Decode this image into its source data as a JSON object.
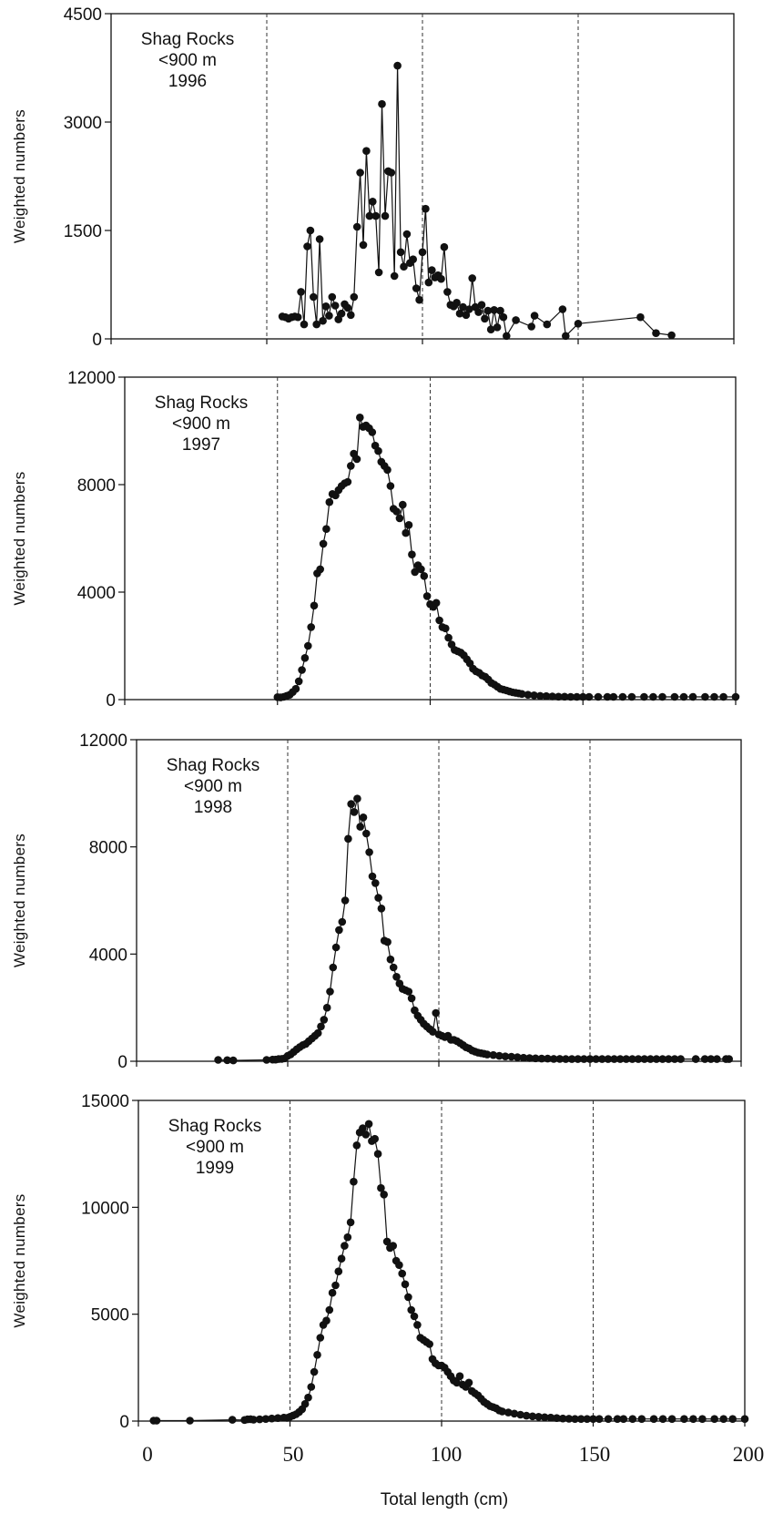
{
  "figure": {
    "xlabel": "Total length (cm)",
    "x_ticks": [
      "0",
      "50",
      "100",
      "150",
      "200"
    ]
  },
  "chart_data": [
    {
      "type": "line",
      "title_lines": [
        "Shag Rocks",
        "<900 m",
        "1996"
      ],
      "xlabel": "Total length (cm)",
      "ylabel": "Weighted numbers",
      "xlim": [
        0,
        200
      ],
      "ylim": [
        0,
        4500
      ],
      "y_ticks": [
        0,
        1500,
        3000,
        4500
      ],
      "y_tick_labels": [
        "0",
        "1500",
        "3000",
        "4500"
      ],
      "reference_lines_x": [
        50,
        100,
        150
      ],
      "series": [
        {
          "x": [
            55,
            56,
            57,
            58,
            59,
            60,
            61,
            62,
            63,
            64,
            65,
            66,
            67,
            68,
            69,
            70,
            71,
            72,
            73,
            74,
            75,
            76,
            77,
            78,
            79,
            80,
            81,
            82,
            83,
            84,
            85,
            86,
            87,
            88,
            89,
            90,
            91,
            92,
            93,
            94,
            95,
            96,
            97,
            98,
            99,
            100,
            101,
            102,
            103,
            104,
            105,
            106,
            107,
            108,
            109,
            110,
            111,
            112,
            113,
            114,
            115,
            116,
            117,
            118,
            119,
            120,
            121,
            122,
            123,
            124,
            125,
            126,
            127,
            130,
            135,
            136,
            140,
            145,
            146,
            150,
            170,
            175,
            180
          ],
          "values": [
            310,
            300,
            280,
            300,
            310,
            300,
            650,
            200,
            1280,
            1500,
            580,
            200,
            1380,
            250,
            450,
            320,
            580,
            460,
            270,
            350,
            480,
            430,
            330,
            580,
            1550,
            2300,
            1300,
            2600,
            1700,
            1900,
            1700,
            920,
            3250,
            1700,
            2320,
            2300,
            870,
            3780,
            1200,
            1000,
            1450,
            1050,
            1100,
            700,
            540,
            1200,
            1800,
            780,
            950,
            850,
            880,
            830,
            1270,
            650,
            470,
            450,
            500,
            350,
            440,
            330,
            410,
            840,
            440,
            370,
            470,
            280,
            390,
            130,
            400,
            160,
            390,
            300,
            40,
            260,
            170,
            320,
            200,
            410,
            40,
            210,
            300,
            80,
            50
          ]
        }
      ]
    },
    {
      "type": "line",
      "title_lines": [
        "Shag Rocks",
        "<900 m",
        "1997"
      ],
      "xlabel": "Total length (cm)",
      "ylabel": "Weighted numbers",
      "xlim": [
        0,
        200
      ],
      "ylim": [
        0,
        12000
      ],
      "y_ticks": [
        0,
        4000,
        8000,
        12000
      ],
      "y_tick_labels": [
        "0",
        "4000",
        "8000",
        "12000"
      ],
      "reference_lines_x": [
        50,
        100,
        150
      ],
      "series": [
        {
          "x": [
            50,
            51,
            52,
            53,
            54,
            55,
            56,
            57,
            58,
            59,
            60,
            61,
            62,
            63,
            64,
            65,
            66,
            67,
            68,
            69,
            70,
            71,
            72,
            73,
            74,
            75,
            76,
            77,
            78,
            79,
            80,
            81,
            82,
            83,
            84,
            85,
            86,
            87,
            88,
            89,
            90,
            91,
            92,
            93,
            94,
            95,
            96,
            97,
            98,
            99,
            100,
            101,
            102,
            103,
            104,
            105,
            106,
            107,
            108,
            109,
            110,
            111,
            112,
            113,
            114,
            115,
            116,
            117,
            118,
            119,
            120,
            121,
            122,
            123,
            124,
            125,
            126,
            127,
            128,
            129,
            130,
            132,
            134,
            136,
            138,
            140,
            142,
            144,
            146,
            148,
            150,
            152,
            155,
            158,
            160,
            163,
            166,
            170,
            173,
            176,
            180,
            183,
            186,
            190,
            193,
            196,
            200
          ],
          "values": [
            90,
            80,
            100,
            140,
            180,
            280,
            400,
            680,
            1100,
            1550,
            2000,
            2700,
            3500,
            4700,
            4850,
            5800,
            6350,
            7350,
            7650,
            7600,
            7800,
            7950,
            8050,
            8100,
            8700,
            9150,
            8950,
            10500,
            10150,
            10200,
            10100,
            9950,
            9450,
            9250,
            8850,
            8700,
            8550,
            7950,
            7100,
            7000,
            6750,
            7250,
            6200,
            6500,
            5400,
            4750,
            5000,
            4850,
            4600,
            3850,
            3550,
            3450,
            3600,
            2950,
            2700,
            2650,
            2300,
            2050,
            1850,
            1800,
            1750,
            1650,
            1500,
            1350,
            1150,
            1050,
            1000,
            900,
            850,
            750,
            620,
            560,
            480,
            400,
            370,
            340,
            300,
            270,
            250,
            230,
            210,
            180,
            160,
            140,
            130,
            120,
            110,
            110,
            100,
            100,
            100,
            100,
            100,
            100,
            100,
            100,
            100,
            100,
            100,
            100,
            100,
            100,
            100,
            100,
            100,
            100,
            100
          ]
        }
      ]
    },
    {
      "type": "line",
      "title_lines": [
        "Shag Rocks",
        "<900 m",
        "1998"
      ],
      "xlabel": "Total length (cm)",
      "ylabel": "Weighted numbers",
      "xlim": [
        0,
        200
      ],
      "ylim": [
        0,
        12000
      ],
      "y_ticks": [
        0,
        4000,
        8000,
        12000
      ],
      "y_tick_labels": [
        "0",
        "4000",
        "8000",
        "12000"
      ],
      "reference_lines_x": [
        50,
        100,
        150
      ],
      "series": [
        {
          "x": [
            27,
            30,
            32,
            43,
            45,
            46,
            47,
            48,
            49,
            50,
            51,
            52,
            53,
            54,
            55,
            56,
            57,
            58,
            59,
            60,
            61,
            62,
            63,
            64,
            65,
            66,
            67,
            68,
            69,
            70,
            71,
            72,
            73,
            74,
            75,
            76,
            77,
            78,
            79,
            80,
            81,
            82,
            83,
            84,
            85,
            86,
            87,
            88,
            89,
            90,
            91,
            92,
            93,
            94,
            95,
            96,
            97,
            98,
            99,
            100,
            101,
            102,
            103,
            104,
            105,
            106,
            107,
            108,
            109,
            110,
            111,
            112,
            113,
            114,
            115,
            116,
            118,
            120,
            122,
            124,
            126,
            128,
            130,
            132,
            134,
            136,
            138,
            140,
            142,
            144,
            146,
            148,
            150,
            152,
            154,
            156,
            158,
            160,
            162,
            164,
            166,
            168,
            170,
            172,
            174,
            176,
            178,
            180,
            185,
            188,
            190,
            192,
            195,
            196
          ],
          "values": [
            50,
            40,
            30,
            50,
            60,
            60,
            80,
            90,
            110,
            200,
            260,
            350,
            450,
            530,
            600,
            650,
            750,
            850,
            950,
            1050,
            1300,
            1550,
            2000,
            2600,
            3500,
            4250,
            4900,
            5200,
            6000,
            8300,
            9600,
            9300,
            9800,
            8750,
            9100,
            8500,
            7800,
            6900,
            6650,
            6100,
            5700,
            4500,
            4450,
            3800,
            3500,
            3150,
            2900,
            2700,
            2650,
            2600,
            2350,
            1900,
            1700,
            1550,
            1400,
            1300,
            1200,
            1100,
            1800,
            1000,
            950,
            900,
            950,
            800,
            800,
            750,
            680,
            600,
            520,
            480,
            400,
            360,
            320,
            300,
            280,
            250,
            230,
            200,
            180,
            170,
            150,
            130,
            120,
            110,
            100,
            100,
            90,
            90,
            80,
            80,
            80,
            80,
            80,
            80,
            80,
            80,
            80,
            80,
            80,
            80,
            80,
            80,
            80,
            80,
            80,
            80,
            80,
            80,
            80,
            80,
            80,
            80,
            80,
            80
          ]
        }
      ]
    },
    {
      "type": "line",
      "title_lines": [
        "Shag Rocks",
        "<900 m",
        "1999"
      ],
      "xlabel": "Total length (cm)",
      "ylabel": "Weighted numbers",
      "xlim": [
        0,
        200
      ],
      "ylim": [
        0,
        15000
      ],
      "y_ticks": [
        0,
        5000,
        10000,
        15000
      ],
      "y_tick_labels": [
        "0",
        "5000",
        "10000",
        "15000"
      ],
      "reference_lines_x": [
        50,
        100,
        150
      ],
      "series": [
        {
          "x": [
            5,
            6,
            17,
            31,
            35,
            36,
            37,
            38,
            40,
            42,
            44,
            46,
            48,
            49,
            50,
            51,
            52,
            53,
            54,
            55,
            56,
            57,
            58,
            59,
            60,
            61,
            62,
            63,
            64,
            65,
            66,
            67,
            68,
            69,
            70,
            71,
            72,
            73,
            74,
            75,
            76,
            77,
            78,
            79,
            80,
            81,
            82,
            83,
            84,
            85,
            86,
            87,
            88,
            89,
            90,
            91,
            92,
            93,
            94,
            95,
            96,
            97,
            98,
            99,
            100,
            101,
            102,
            103,
            104,
            105,
            106,
            107,
            108,
            109,
            110,
            111,
            112,
            113,
            114,
            115,
            116,
            117,
            118,
            119,
            120,
            122,
            124,
            126,
            128,
            130,
            132,
            134,
            136,
            138,
            140,
            142,
            144,
            146,
            148,
            150,
            152,
            155,
            158,
            160,
            163,
            166,
            170,
            173,
            176,
            180,
            183,
            186,
            190,
            193,
            196,
            200
          ],
          "values": [
            20,
            20,
            20,
            60,
            50,
            80,
            90,
            70,
            80,
            100,
            120,
            140,
            160,
            150,
            200,
            260,
            320,
            420,
            560,
            800,
            1100,
            1600,
            2300,
            3100,
            3900,
            4500,
            4700,
            5200,
            6000,
            6350,
            7000,
            7600,
            8200,
            8600,
            9300,
            11200,
            12900,
            13500,
            13700,
            13400,
            13900,
            13100,
            13200,
            12500,
            10900,
            10600,
            8400,
            8100,
            8200,
            7500,
            7300,
            6900,
            6400,
            5800,
            5200,
            4900,
            4500,
            3900,
            3800,
            3700,
            3600,
            2900,
            2700,
            2600,
            2600,
            2500,
            2300,
            2100,
            1900,
            1800,
            2100,
            1700,
            1600,
            1800,
            1400,
            1300,
            1200,
            1050,
            900,
            800,
            700,
            650,
            600,
            500,
            450,
            400,
            350,
            300,
            250,
            220,
            200,
            180,
            160,
            140,
            120,
            110,
            100,
            100,
            100,
            100,
            100,
            100,
            100,
            100,
            100,
            100,
            100,
            100,
            100,
            100,
            100,
            100,
            100,
            100,
            100,
            100
          ]
        }
      ]
    }
  ]
}
